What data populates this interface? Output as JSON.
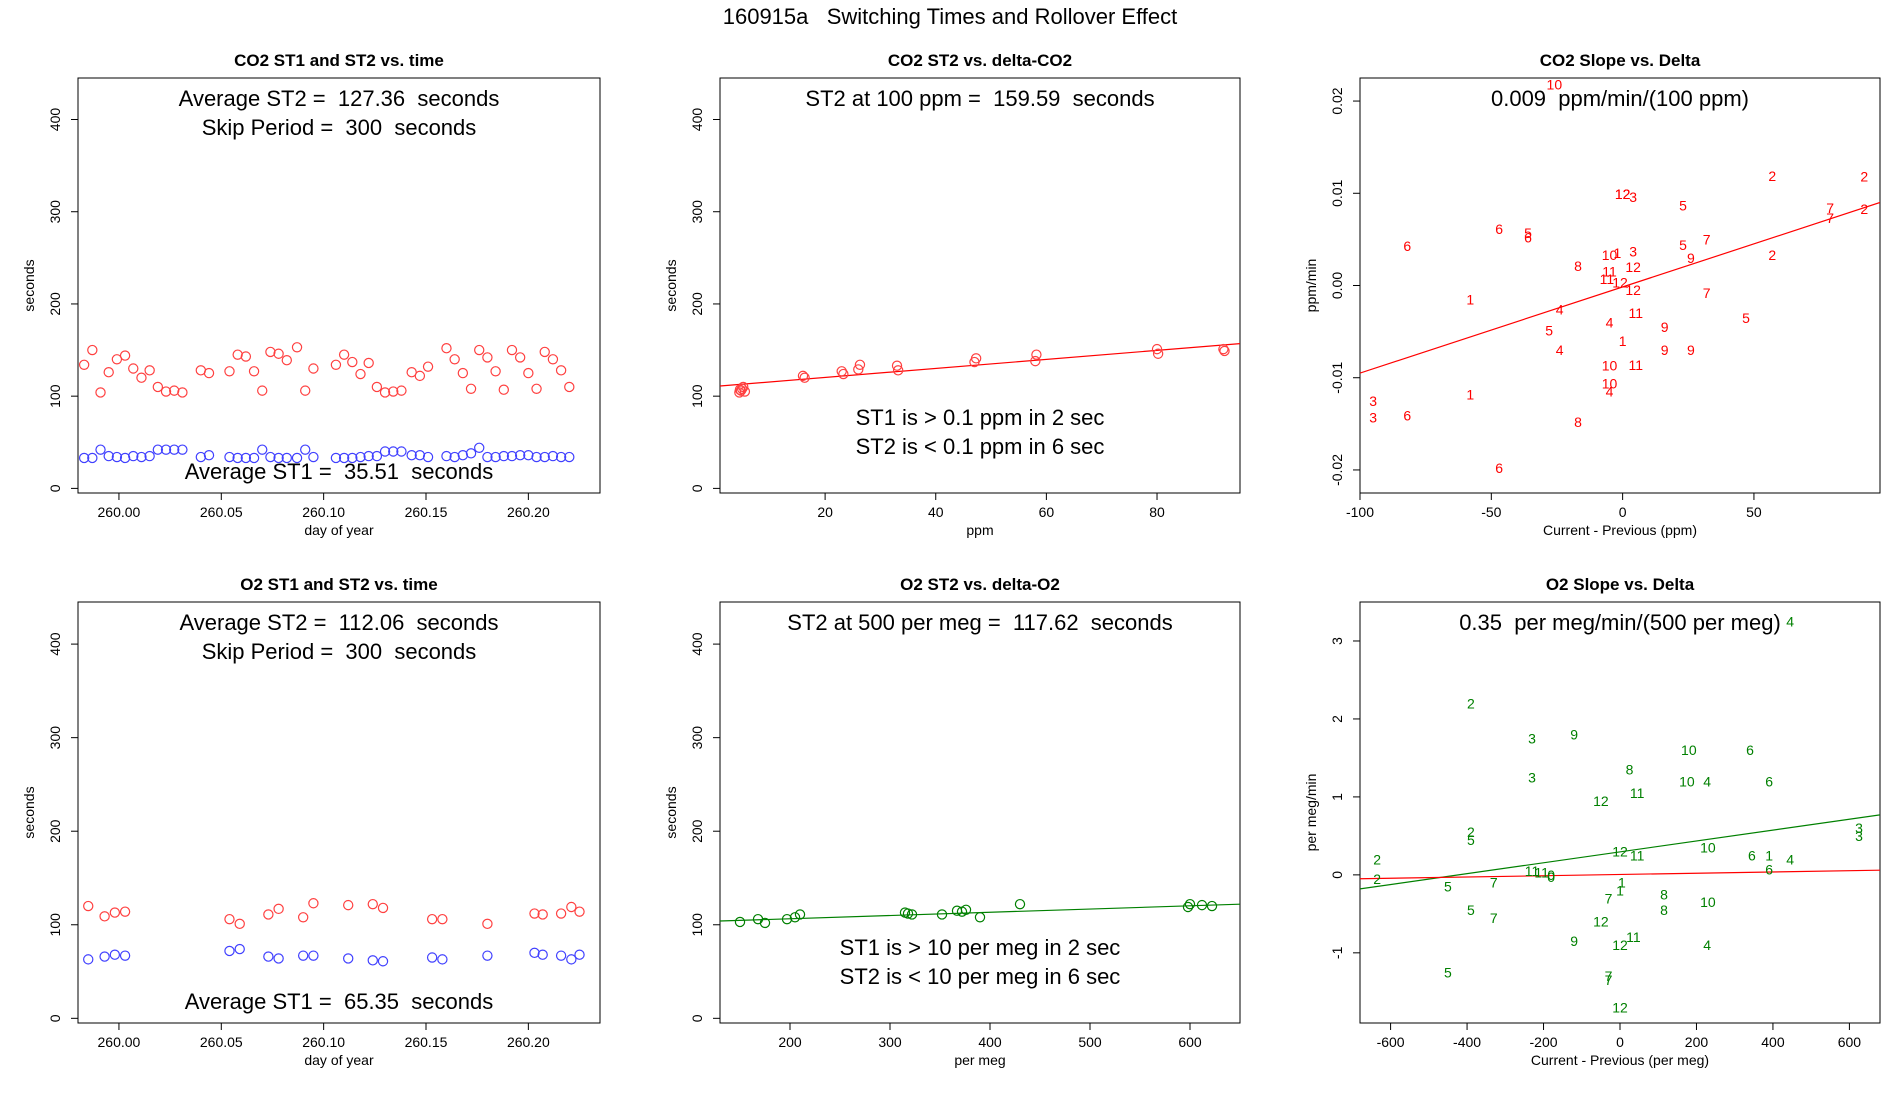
{
  "page_title": "160915a   Switching Times and Rollover Effect",
  "colors": {
    "st2": "#ff4040",
    "st1": "#4040ff",
    "co2_slope": "#ff0000",
    "o2": "#008000",
    "o2_alt": "#ff0000",
    "axis": "#000000"
  },
  "chart_data": [
    {
      "id": "co2_time",
      "type": "scatter",
      "title": "CO2 ST1 and ST2 vs. time",
      "xlabel": "day of year",
      "ylabel": "seconds",
      "xlim": [
        259.98,
        260.235
      ],
      "ylim": [
        -5,
        445
      ],
      "xticks": [
        260.0,
        260.05,
        260.1,
        260.15,
        260.2
      ],
      "xtick_labels": [
        "260.00",
        "260.05",
        "260.10",
        "260.15",
        "260.20"
      ],
      "yticks": [
        0,
        100,
        200,
        300,
        400
      ],
      "ytick_labels": [
        "0",
        "100",
        "200",
        "300",
        "400"
      ],
      "annotations": [
        "Average ST2 =  127.36  seconds",
        "Skip Period =  300  seconds",
        "Average ST1 =  35.51  seconds"
      ],
      "series": [
        {
          "name": "ST2",
          "marker": "circle",
          "color": "#ff4040",
          "x": [
            259.983,
            259.987,
            259.991,
            259.995,
            259.999,
            260.003,
            260.007,
            260.011,
            260.015,
            260.019,
            260.023,
            260.027,
            260.031,
            260.04,
            260.044,
            260.054,
            260.058,
            260.062,
            260.066,
            260.07,
            260.074,
            260.078,
            260.082,
            260.087,
            260.091,
            260.095,
            260.106,
            260.11,
            260.114,
            260.118,
            260.122,
            260.126,
            260.13,
            260.134,
            260.138,
            260.143,
            260.147,
            260.151,
            260.16,
            260.164,
            260.168,
            260.172,
            260.176,
            260.18,
            260.184,
            260.188,
            260.192,
            260.196,
            260.2,
            260.204,
            260.208,
            260.212,
            260.216,
            260.22
          ],
          "y": [
            134,
            150,
            104,
            126,
            140,
            144,
            130,
            120,
            128,
            110,
            105,
            106,
            104,
            128,
            125,
            127,
            145,
            143,
            127,
            106,
            148,
            146,
            139,
            153,
            106,
            130,
            134,
            145,
            137,
            124,
            136,
            110,
            104,
            105,
            106,
            126,
            122,
            132,
            152,
            140,
            125,
            108,
            150,
            142,
            127,
            107,
            150,
            142,
            125,
            108,
            148,
            140,
            128,
            110
          ]
        },
        {
          "name": "ST1",
          "marker": "circle",
          "color": "#4040ff",
          "x": [
            259.983,
            259.987,
            259.991,
            259.995,
            259.999,
            260.003,
            260.007,
            260.011,
            260.015,
            260.019,
            260.023,
            260.027,
            260.031,
            260.04,
            260.044,
            260.054,
            260.058,
            260.062,
            260.066,
            260.07,
            260.074,
            260.078,
            260.082,
            260.087,
            260.091,
            260.095,
            260.106,
            260.11,
            260.114,
            260.118,
            260.122,
            260.126,
            260.13,
            260.134,
            260.138,
            260.143,
            260.147,
            260.151,
            260.16,
            260.164,
            260.168,
            260.172,
            260.176,
            260.18,
            260.184,
            260.188,
            260.192,
            260.196,
            260.2,
            260.204,
            260.208,
            260.212,
            260.216,
            260.22
          ],
          "y": [
            33,
            33,
            42,
            35,
            34,
            33,
            35,
            34,
            35,
            42,
            42,
            42,
            42,
            34,
            36,
            34,
            33,
            33,
            33,
            42,
            34,
            33,
            33,
            33,
            42,
            34,
            33,
            33,
            33,
            34,
            35,
            35,
            40,
            40,
            40,
            36,
            36,
            34,
            35,
            34,
            36,
            38,
            44,
            34,
            34,
            35,
            35,
            36,
            36,
            34,
            34,
            35,
            34,
            34
          ]
        }
      ]
    },
    {
      "id": "co2_delta",
      "type": "scatter",
      "title": "CO2 ST2 vs. delta-CO2",
      "xlabel": "ppm",
      "ylabel": "seconds",
      "xlim": [
        1,
        95
      ],
      "ylim": [
        -5,
        445
      ],
      "xticks": [
        20,
        40,
        60,
        80
      ],
      "xtick_labels": [
        "20",
        "40",
        "60",
        "80"
      ],
      "yticks": [
        0,
        100,
        200,
        300,
        400
      ],
      "ytick_labels": [
        "0",
        "100",
        "200",
        "300",
        "400"
      ],
      "annotations": [
        "ST2 at 100 ppm =  159.59  seconds",
        "ST1 is > 0.1 ppm in 2 sec",
        "ST2 is < 0.1 ppm in 6 sec"
      ],
      "series": [
        {
          "name": "ST2",
          "marker": "circle",
          "color": "#ff4040",
          "x": [
            4.5,
            4.8,
            5.0,
            5.2,
            5.5,
            4.6,
            16,
            16.3,
            23,
            23.3,
            26,
            26.3,
            33,
            33.2,
            47,
            47.3,
            58,
            58.2,
            80,
            80.2,
            92,
            92.2
          ],
          "y": [
            104,
            106,
            108,
            110,
            105,
            107,
            122,
            120,
            127,
            124,
            129,
            134,
            133,
            128,
            137,
            141,
            138,
            145,
            151,
            146,
            151,
            149
          ]
        }
      ],
      "fit_line": {
        "color": "#ff0000",
        "x": [
          1,
          95
        ],
        "y": [
          111,
          157
        ]
      }
    },
    {
      "id": "co2_slope",
      "type": "scatter",
      "title": "CO2 Slope vs. Delta",
      "xlabel": "Current - Previous (ppm)",
      "ylabel": "ppm/min",
      "xlim": [
        -100,
        98
      ],
      "ylim": [
        -0.0225,
        0.0225
      ],
      "xticks": [
        -100,
        -50,
        0,
        50
      ],
      "xtick_labels": [
        "-100",
        "-50",
        "0",
        "50"
      ],
      "yticks": [
        -0.02,
        -0.01,
        0.0,
        0.01,
        0.02
      ],
      "ytick_labels": [
        "-0.02",
        "-0.01",
        "0.00",
        "0.01",
        "0.02"
      ],
      "annotations": [
        "0.009  ppm/min/(100 ppm)"
      ],
      "points": {
        "color": "#ff0000",
        "labels": [
          "10",
          "12",
          "3",
          "5",
          "6",
          "6",
          "5",
          "6",
          "10",
          "1",
          "3",
          "5",
          "9",
          "7",
          "7",
          "2",
          "2",
          "2",
          "8",
          "11",
          "12",
          "11",
          "12",
          "7",
          "2",
          "12",
          "1",
          "5",
          "4",
          "10",
          "4",
          "11",
          "9",
          "1",
          "9",
          "11",
          "4",
          "9",
          "5",
          "3",
          "3",
          "6",
          "1",
          "10",
          "4",
          "8",
          "6",
          "7",
          "12"
        ],
        "x": [
          -26,
          0,
          4,
          23,
          -82,
          -47,
          -36,
          -36,
          -5,
          -2,
          4,
          23,
          26,
          32,
          79,
          57,
          92,
          92,
          -17,
          -5,
          4,
          -6,
          -1,
          32,
          57,
          4,
          -58,
          -28,
          -24,
          -5,
          -5,
          5,
          16,
          0,
          16,
          5,
          -24,
          26,
          47,
          -95,
          -95,
          -82,
          -58,
          -5,
          -5,
          -17,
          -47,
          79,
          0
        ],
        "y": [
          0.0218,
          0.0099,
          0.0096,
          0.0087,
          0.0043,
          0.0061,
          0.0057,
          0.0052,
          0.0033,
          0.0035,
          0.0037,
          0.0044,
          0.003,
          0.005,
          0.0073,
          0.0119,
          0.0118,
          0.0083,
          0.0021,
          0.0015,
          0.002,
          0.0007,
          0.0003,
          -0.0008,
          0.0033,
          -0.0005,
          -0.0015,
          -0.0049,
          -0.0026,
          -0.0087,
          -0.004,
          -0.003,
          -0.0045,
          -0.006,
          -0.007,
          -0.0086,
          -0.007,
          -0.007,
          -0.0035,
          -0.0125,
          -0.0143,
          -0.0141,
          -0.0118,
          -0.0106,
          -0.0115,
          -0.0148,
          -0.0198,
          0.0084,
          0.0099
        ]
      },
      "fit_line": {
        "color": "#ff0000",
        "x": [
          -100,
          98
        ],
        "y": [
          -0.0095,
          0.009
        ]
      }
    },
    {
      "id": "o2_time",
      "type": "scatter",
      "title": "O2 ST1 and ST2 vs. time",
      "xlabel": "day of year",
      "ylabel": "seconds",
      "xlim": [
        259.98,
        260.235
      ],
      "ylim": [
        -5,
        445
      ],
      "xticks": [
        260.0,
        260.05,
        260.1,
        260.15,
        260.2
      ],
      "xtick_labels": [
        "260.00",
        "260.05",
        "260.10",
        "260.15",
        "260.20"
      ],
      "yticks": [
        0,
        100,
        200,
        300,
        400
      ],
      "ytick_labels": [
        "0",
        "100",
        "200",
        "300",
        "400"
      ],
      "annotations": [
        "Average ST2 =  112.06  seconds",
        "Skip Period =  300  seconds",
        "Average ST1 =  65.35  seconds"
      ],
      "series": [
        {
          "name": "ST2",
          "marker": "circle",
          "color": "#ff4040",
          "x": [
            259.985,
            259.993,
            259.998,
            260.003,
            260.054,
            260.059,
            260.073,
            260.078,
            260.09,
            260.095,
            260.112,
            260.124,
            260.129,
            260.153,
            260.158,
            260.18,
            260.203,
            260.207,
            260.216,
            260.221,
            260.225
          ],
          "y": [
            120,
            109,
            113,
            114,
            106,
            101,
            111,
            117,
            108,
            123,
            121,
            122,
            118,
            106,
            106,
            101,
            112,
            111,
            112,
            119,
            114
          ]
        },
        {
          "name": "ST1",
          "marker": "circle",
          "color": "#4040ff",
          "x": [
            259.985,
            259.993,
            259.998,
            260.003,
            260.054,
            260.059,
            260.073,
            260.078,
            260.09,
            260.095,
            260.112,
            260.124,
            260.129,
            260.153,
            260.158,
            260.18,
            260.203,
            260.207,
            260.216,
            260.221,
            260.225
          ],
          "y": [
            63,
            66,
            68,
            67,
            72,
            74,
            66,
            64,
            67,
            67,
            64,
            62,
            61,
            65,
            63,
            67,
            70,
            68,
            67,
            63,
            68
          ]
        }
      ]
    },
    {
      "id": "o2_delta",
      "type": "scatter",
      "title": "O2 ST2 vs. delta-O2",
      "xlabel": "per meg",
      "ylabel": "seconds",
      "xlim": [
        130,
        650
      ],
      "ylim": [
        -5,
        445
      ],
      "xticks": [
        200,
        300,
        400,
        500,
        600
      ],
      "xtick_labels": [
        "200",
        "300",
        "400",
        "500",
        "600"
      ],
      "yticks": [
        0,
        100,
        200,
        300,
        400
      ],
      "ytick_labels": [
        "0",
        "100",
        "200",
        "300",
        "400"
      ],
      "annotations": [
        "ST2 at 500 per meg =  117.62  seconds",
        "ST1 is > 10 per meg in 2 sec",
        "ST2 is < 10 per meg in 6 sec"
      ],
      "series": [
        {
          "name": "ST2",
          "marker": "circle",
          "color": "#008000",
          "x": [
            150,
            168,
            175,
            197,
            205,
            210,
            315,
            318,
            322,
            352,
            367,
            372,
            376,
            390,
            430,
            598,
            600,
            612,
            622
          ],
          "y": [
            103,
            106,
            102,
            106,
            108,
            111,
            113,
            112,
            111,
            111,
            115,
            114,
            116,
            108,
            122,
            119,
            122,
            121,
            120
          ]
        }
      ],
      "fit_line": {
        "color": "#008000",
        "x": [
          130,
          650
        ],
        "y": [
          104,
          122
        ]
      }
    },
    {
      "id": "o2_slope",
      "type": "scatter",
      "title": "O2 Slope vs. Delta",
      "xlabel": "Current - Previous (per meg)",
      "ylabel": "per meg/min",
      "xlim": [
        -680,
        680
      ],
      "ylim": [
        -1.9,
        3.5
      ],
      "xticks": [
        -600,
        -400,
        -200,
        0,
        200,
        400,
        600
      ],
      "xtick_labels": [
        "-600",
        "-400",
        "-200",
        "0",
        "200",
        "400",
        "600"
      ],
      "yticks": [
        -1,
        0,
        1,
        2,
        3
      ],
      "ytick_labels": [
        "-1",
        "0",
        "1",
        "2",
        "3"
      ],
      "annotations": [
        "0.35  per meg/min/(500 per meg)"
      ],
      "points": {
        "color": "#008000",
        "labels": [
          "4",
          "2",
          "9",
          "3",
          "10",
          "6",
          "8",
          "3",
          "10",
          "4",
          "6",
          "11",
          "12",
          "2",
          "5",
          "2",
          "3",
          "10",
          "11",
          "6",
          "1",
          "4",
          "3",
          "0",
          "5",
          "11",
          "2",
          "5",
          "7",
          "8",
          "10",
          "7",
          "4",
          "12",
          "11",
          "1",
          "7",
          "1",
          "9",
          "12",
          "8",
          "6",
          "7",
          "5",
          "12",
          "7",
          "12",
          "11",
          "0"
        ],
        "x": [
          445,
          -390,
          -120,
          -230,
          180,
          340,
          25,
          -230,
          175,
          228,
          390,
          45,
          -50,
          -390,
          -390,
          -635,
          625,
          230,
          -230,
          345,
          390,
          445,
          625,
          -180,
          -450,
          -205,
          -635,
          -390,
          -330,
          115,
          230,
          -330,
          228,
          0,
          45,
          5,
          -30,
          0,
          -120,
          0,
          115,
          390,
          -30,
          -450,
          -50,
          -30,
          0,
          35,
          -180
        ],
        "y": [
          3.25,
          2.2,
          1.8,
          1.75,
          1.6,
          1.6,
          1.35,
          1.25,
          1.2,
          1.2,
          1.2,
          1.05,
          0.95,
          0.55,
          0.45,
          0.2,
          0.6,
          0.35,
          0.05,
          0.25,
          0.25,
          0.2,
          0.5,
          0.0,
          -0.15,
          0.03,
          -0.05,
          -0.45,
          -0.1,
          -0.25,
          -0.35,
          -0.55,
          -0.9,
          -0.9,
          0.25,
          -0.1,
          -0.3,
          -0.2,
          -0.85,
          0.3,
          -0.45,
          0.07,
          -1.3,
          -1.25,
          -0.6,
          -1.35,
          -1.7,
          -0.8,
          -0.03
        ]
      },
      "fit_lines": [
        {
          "color": "#008000",
          "x": [
            -680,
            680
          ],
          "y": [
            -0.18,
            0.77
          ]
        },
        {
          "color": "#ff0000",
          "x": [
            -680,
            680
          ],
          "y": [
            -0.05,
            0.06
          ]
        }
      ]
    }
  ]
}
